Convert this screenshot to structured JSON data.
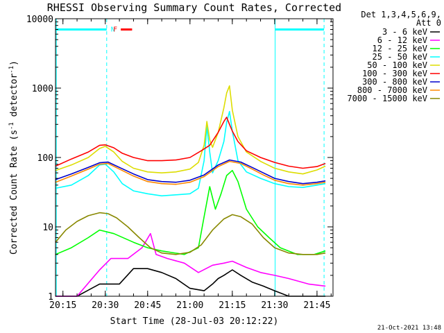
{
  "chart_data": {
    "type": "line",
    "title": "RHESSI Observing Summary Count Rates, Corrected",
    "xlabel": "Start Time (28-Jul-03 20:12:22)",
    "ylabel": "Corrected Count Rate (s",
    "ylabel_sup": "-1",
    "ylabel_tail": " detector",
    "ylabel_sup2": "-1",
    "ylabel_end": ")",
    "yscale": "log",
    "ylim": [
      1,
      10000
    ],
    "y_ticks": [
      {
        "value": 1,
        "label": "1"
      },
      {
        "value": 10,
        "label": "10"
      },
      {
        "value": 100,
        "label": "100"
      },
      {
        "value": 1000,
        "label": "1000"
      },
      {
        "value": 10000,
        "label": "10000"
      }
    ],
    "xlim": [
      "20:12:22",
      "21:50:40"
    ],
    "x_ticks": [
      {
        "value": "20:15",
        "label": "20:15"
      },
      {
        "value": "20:30",
        "label": "20:30"
      },
      {
        "value": "20:45",
        "label": "20:45"
      },
      {
        "value": "21:00",
        "label": "21:00"
      },
      {
        "value": "21:15",
        "label": "21:15"
      },
      {
        "value": "21:30",
        "label": "21:30"
      },
      {
        "value": "21:45",
        "label": "21:45"
      }
    ],
    "legend_header": [
      "Det 1,3,4,5,6,9,",
      "Att 0"
    ],
    "legend_position": "right, outside plot",
    "series": [
      {
        "name": "3 - 6 keV",
        "color": "#000000",
        "x": [
          "20:12:22",
          "20:20",
          "20:28",
          "20:35",
          "20:40",
          "20:45",
          "20:50",
          "20:55",
          "21:00",
          "21:05",
          "21:08",
          "21:10",
          "21:12",
          "21:15",
          "21:18",
          "21:22",
          "21:26",
          "21:30",
          "21:35",
          "21:40",
          "21:45",
          "21:48"
        ],
        "y": [
          1,
          1,
          1.5,
          1.5,
          2.5,
          2.5,
          2.2,
          1.8,
          1.3,
          1.2,
          1.5,
          1.8,
          2,
          2.4,
          2,
          1.6,
          1.4,
          1.2,
          1,
          1,
          1,
          1
        ]
      },
      {
        "name": "6 - 12 keV",
        "color": "#ff00ff",
        "x": [
          "20:12:22",
          "20:20",
          "20:28",
          "20:32",
          "20:38",
          "20:43",
          "20:46",
          "20:48",
          "20:52",
          "20:58",
          "21:03",
          "21:08",
          "21:12",
          "21:15",
          "21:20",
          "21:25",
          "21:30",
          "21:35",
          "21:42",
          "21:48"
        ],
        "y": [
          1,
          1,
          2.4,
          3.5,
          3.5,
          5,
          8,
          4,
          3.5,
          3,
          2.2,
          2.8,
          3,
          3.2,
          2.6,
          2.2,
          2,
          1.8,
          1.5,
          1.4
        ]
      },
      {
        "name": "12 - 25 keV",
        "color": "#00ff00",
        "x": [
          "20:12:22",
          "20:18",
          "20:24",
          "20:28",
          "20:33",
          "20:40",
          "20:45",
          "20:50",
          "20:58",
          "21:03",
          "21:05",
          "21:07",
          "21:09",
          "21:11",
          "21:13",
          "21:15",
          "21:17",
          "21:20",
          "21:24",
          "21:28",
          "21:32",
          "21:38",
          "21:44",
          "21:48"
        ],
        "y": [
          4,
          5,
          7,
          9,
          8,
          6,
          5,
          4.5,
          4,
          5,
          14,
          38,
          18,
          30,
          55,
          65,
          45,
          18,
          10,
          7,
          5,
          4,
          4,
          4.5
        ]
      },
      {
        "name": "25 - 50 keV",
        "color": "#00ffff",
        "x": [
          "20:12:22",
          "20:18",
          "20:24",
          "20:28",
          "20:30",
          "20:33",
          "20:36",
          "20:40",
          "20:45",
          "20:50",
          "20:55",
          "21:00",
          "21:03",
          "21:05",
          "21:06",
          "21:07",
          "21:08",
          "21:10",
          "21:12",
          "21:13",
          "21:14",
          "21:15",
          "21:17",
          "21:20",
          "21:25",
          "21:30",
          "21:35",
          "21:40",
          "21:45",
          "21:48"
        ],
        "y": [
          36,
          40,
          55,
          78,
          80,
          62,
          42,
          33,
          30,
          28,
          29,
          30,
          36,
          90,
          280,
          120,
          60,
          90,
          170,
          320,
          460,
          240,
          90,
          62,
          50,
          42,
          38,
          37,
          40,
          42
        ]
      },
      {
        "name": "50 - 100 keV",
        "color": "#dddd00",
        "x": [
          "20:12:22",
          "20:18",
          "20:24",
          "20:28",
          "20:30",
          "20:33",
          "20:36",
          "20:40",
          "20:45",
          "20:50",
          "20:55",
          "21:00",
          "21:03",
          "21:05",
          "21:06",
          "21:07",
          "21:08",
          "21:10",
          "21:12",
          "21:13",
          "21:14",
          "21:15",
          "21:17",
          "21:20",
          "21:25",
          "21:30",
          "21:35",
          "21:40",
          "21:45",
          "21:48"
        ],
        "y": [
          65,
          78,
          100,
          135,
          145,
          120,
          88,
          70,
          62,
          60,
          62,
          68,
          85,
          150,
          330,
          180,
          140,
          230,
          520,
          850,
          1080,
          480,
          200,
          120,
          88,
          70,
          62,
          58,
          66,
          75
        ]
      },
      {
        "name": "100 - 300 keV",
        "color": "#ff0000",
        "x": [
          "20:12:22",
          "20:18",
          "20:24",
          "20:28",
          "20:30",
          "20:33",
          "20:36",
          "20:40",
          "20:45",
          "20:50",
          "20:55",
          "21:00",
          "21:04",
          "21:07",
          "21:10",
          "21:12",
          "21:13",
          "21:14",
          "21:15",
          "21:17",
          "21:20",
          "21:25",
          "21:30",
          "21:35",
          "21:40",
          "21:45",
          "21:48"
        ],
        "y": [
          75,
          95,
          120,
          150,
          152,
          138,
          115,
          100,
          90,
          90,
          92,
          100,
          125,
          150,
          230,
          330,
          380,
          300,
          240,
          170,
          125,
          100,
          85,
          75,
          70,
          74,
          82
        ]
      },
      {
        "name": "300 - 800 keV",
        "color": "#0000cc",
        "x": [
          "20:12:22",
          "20:18",
          "20:24",
          "20:28",
          "20:31",
          "20:35",
          "20:40",
          "20:45",
          "20:50",
          "20:55",
          "21:00",
          "21:05",
          "21:10",
          "21:14",
          "21:18",
          "21:22",
          "21:26",
          "21:30",
          "21:35",
          "21:40",
          "21:45",
          "21:48"
        ],
        "y": [
          48,
          58,
          72,
          84,
          86,
          72,
          58,
          48,
          45,
          44,
          47,
          56,
          78,
          92,
          86,
          72,
          60,
          50,
          45,
          42,
          44,
          46
        ]
      },
      {
        "name": "800 - 7000 keV",
        "color": "#ff8800",
        "x": [
          "20:12:22",
          "20:18",
          "20:24",
          "20:28",
          "20:31",
          "20:35",
          "20:40",
          "20:45",
          "20:50",
          "20:55",
          "21:00",
          "21:05",
          "21:10",
          "21:14",
          "21:18",
          "21:22",
          "21:26",
          "21:30",
          "21:35",
          "21:40",
          "21:45",
          "21:48"
        ],
        "y": [
          44,
          54,
          68,
          80,
          82,
          68,
          54,
          45,
          42,
          41,
          44,
          53,
          74,
          88,
          82,
          68,
          56,
          47,
          42,
          40,
          42,
          44
        ]
      },
      {
        "name": "7000 - 15000 keV",
        "color": "#888800",
        "x": [
          "20:12:22",
          "20:16",
          "20:20",
          "20:24",
          "20:28",
          "20:31",
          "20:34",
          "20:38",
          "20:42",
          "20:46",
          "20:50",
          "20:55",
          "21:00",
          "21:04",
          "21:08",
          "21:12",
          "21:15",
          "21:18",
          "21:22",
          "21:26",
          "21:30",
          "21:35",
          "21:40",
          "21:45",
          "21:48"
        ],
        "y": [
          6,
          9,
          12,
          14.5,
          16,
          15.5,
          13.5,
          10,
          7,
          5,
          4.2,
          4,
          4.3,
          5.5,
          9,
          13,
          15,
          14,
          11,
          7,
          5,
          4.2,
          4,
          4,
          4.2
        ]
      }
    ],
    "annotations": [
      {
        "text": "N",
        "color": "#00ffff",
        "kind": "night intervals",
        "intervals": [
          [
            "20:12:22",
            "20:30:30"
          ],
          [
            "21:30:10",
            "21:47:30"
          ]
        ],
        "y": 7000
      },
      {
        "text": "F",
        "color": "#ff0000",
        "kind": "flare interval",
        "intervals": [
          [
            "20:35:30",
            "20:39:30"
          ]
        ],
        "y": 7000
      }
    ],
    "vertical_markers": [
      {
        "x": "20:12:40",
        "color": "#00ffff",
        "style": "solid"
      },
      {
        "x": "20:30:30",
        "color": "#00ffff",
        "style": "dashed"
      },
      {
        "x": "21:30:10",
        "color": "#00ffff",
        "style": "solid"
      },
      {
        "x": "21:47:30",
        "color": "#00ffff",
        "style": "dashed"
      }
    ],
    "timestamp": "21-Oct-2021 13:48"
  }
}
